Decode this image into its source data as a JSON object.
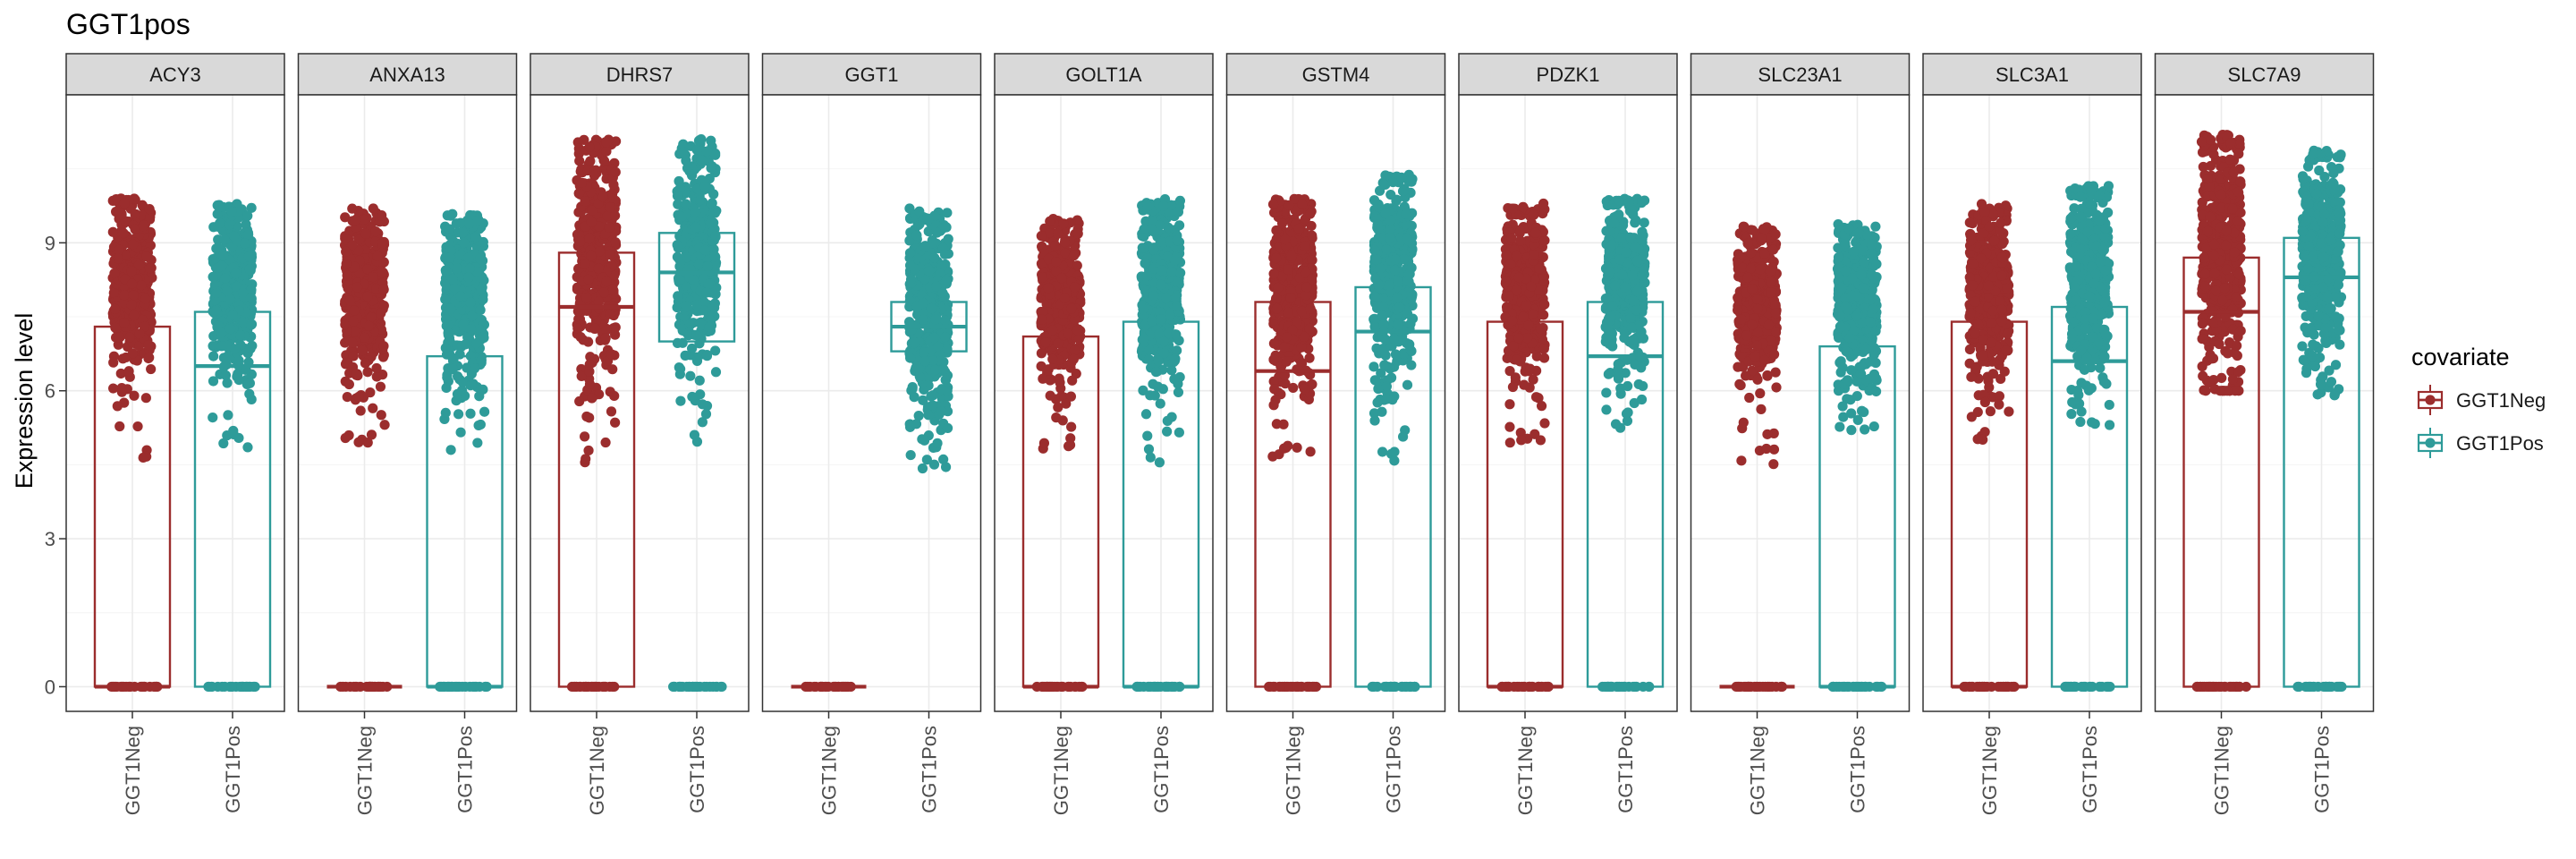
{
  "chart_data": {
    "type": "box",
    "title": "GGT1pos",
    "ylabel": "Expression level",
    "xlabel": "",
    "ylim": [
      -0.5,
      12.0
    ],
    "yticks": [
      0,
      3,
      6,
      9
    ],
    "grid": true,
    "legend": {
      "title": "covariate",
      "placement": "right",
      "entries": [
        "GGT1Neg",
        "GGT1Pos"
      ]
    },
    "groups": [
      "GGT1Neg",
      "GGT1Pos"
    ],
    "colors": {
      "GGT1Neg": "#9b2d2d",
      "GGT1Pos": "#2e9b99"
    },
    "panels": [
      {
        "gene": "ACY3",
        "GGT1Neg": {
          "q1": 0,
          "median": 0,
          "q3": 7.3,
          "cluster_low": 6.0,
          "cluster_high": 9.9,
          "outlier_low": 4.6,
          "zero_points": true
        },
        "GGT1Pos": {
          "q1": 0,
          "median": 6.5,
          "q3": 7.6,
          "cluster_low": 6.0,
          "cluster_high": 9.8,
          "outlier_low": 4.5,
          "zero_points": true
        }
      },
      {
        "gene": "ANXA13",
        "GGT1Neg": {
          "q1": 0,
          "median": 0,
          "q3": 0,
          "cluster_low": 5.8,
          "cluster_high": 9.7,
          "outlier_low": 4.8,
          "zero_points": true
        },
        "GGT1Pos": {
          "q1": 0,
          "median": 0,
          "q3": 6.7,
          "cluster_low": 5.8,
          "cluster_high": 9.6,
          "outlier_low": 4.5,
          "zero_points": true
        }
      },
      {
        "gene": "DHRS7",
        "GGT1Neg": {
          "q1": 0,
          "median": 7.7,
          "q3": 8.8,
          "cluster_low": 5.8,
          "cluster_high": 11.1,
          "outlier_low": 4.5,
          "zero_points": true
        },
        "GGT1Pos": {
          "q1": 7.0,
          "median": 8.4,
          "q3": 9.2,
          "cluster_low": 6.0,
          "cluster_high": 11.1,
          "outlier_low": 4.9,
          "zero_points": true
        }
      },
      {
        "gene": "GGT1",
        "GGT1Neg": {
          "q1": 0,
          "median": 0,
          "q3": 0,
          "cluster_low": null,
          "cluster_high": null,
          "outlier_low": null,
          "zero_points": true
        },
        "GGT1Pos": {
          "q1": 6.8,
          "median": 7.3,
          "q3": 7.8,
          "cluster_low": 5.0,
          "cluster_high": 9.7,
          "outlier_low": 4.3,
          "zero_points": false
        }
      },
      {
        "gene": "GOLT1A",
        "GGT1Neg": {
          "q1": 0,
          "median": 0,
          "q3": 7.1,
          "cluster_low": 5.8,
          "cluster_high": 9.5,
          "outlier_low": 4.8,
          "zero_points": true
        },
        "GGT1Pos": {
          "q1": 0,
          "median": 0,
          "q3": 7.4,
          "cluster_low": 5.8,
          "cluster_high": 9.9,
          "outlier_low": 4.5,
          "zero_points": true
        }
      },
      {
        "gene": "GSTM4",
        "GGT1Neg": {
          "q1": 0,
          "median": 6.4,
          "q3": 7.8,
          "cluster_low": 5.8,
          "cluster_high": 9.9,
          "outlier_low": 4.6,
          "zero_points": true
        },
        "GGT1Pos": {
          "q1": 0,
          "median": 7.2,
          "q3": 8.1,
          "cluster_low": 5.8,
          "cluster_high": 10.4,
          "outlier_low": 4.5,
          "zero_points": true
        }
      },
      {
        "gene": "PDZK1",
        "GGT1Neg": {
          "q1": 0,
          "median": 0,
          "q3": 7.4,
          "cluster_low": 5.8,
          "cluster_high": 9.8,
          "outlier_low": 4.9,
          "zero_points": true
        },
        "GGT1Pos": {
          "q1": 0,
          "median": 6.7,
          "q3": 7.8,
          "cluster_low": 6.0,
          "cluster_high": 9.9,
          "outlier_low": 5.2,
          "zero_points": true
        }
      },
      {
        "gene": "SLC23A1",
        "GGT1Neg": {
          "q1": 0,
          "median": 0,
          "q3": 0,
          "cluster_low": 5.8,
          "cluster_high": 9.4,
          "outlier_low": 4.5,
          "zero_points": true
        },
        "GGT1Pos": {
          "q1": 0,
          "median": 0,
          "q3": 6.9,
          "cluster_low": 5.8,
          "cluster_high": 9.4,
          "outlier_low": 5.2,
          "zero_points": true
        }
      },
      {
        "gene": "SLC3A1",
        "GGT1Neg": {
          "q1": 0,
          "median": 0,
          "q3": 7.4,
          "cluster_low": 5.8,
          "cluster_high": 9.8,
          "outlier_low": 5.0,
          "zero_points": true
        },
        "GGT1Pos": {
          "q1": 0,
          "median": 6.6,
          "q3": 7.7,
          "cluster_low": 5.8,
          "cluster_high": 10.2,
          "outlier_low": 5.3,
          "zero_points": true
        }
      },
      {
        "gene": "SLC7A9",
        "GGT1Neg": {
          "q1": 0,
          "median": 7.6,
          "q3": 8.7,
          "cluster_low": 6.0,
          "cluster_high": 11.2,
          "outlier_low": 6.0,
          "zero_points": true
        },
        "GGT1Pos": {
          "q1": 0,
          "median": 8.3,
          "q3": 9.1,
          "cluster_low": 6.2,
          "cluster_high": 10.9,
          "outlier_low": 5.9,
          "zero_points": true
        }
      }
    ]
  }
}
